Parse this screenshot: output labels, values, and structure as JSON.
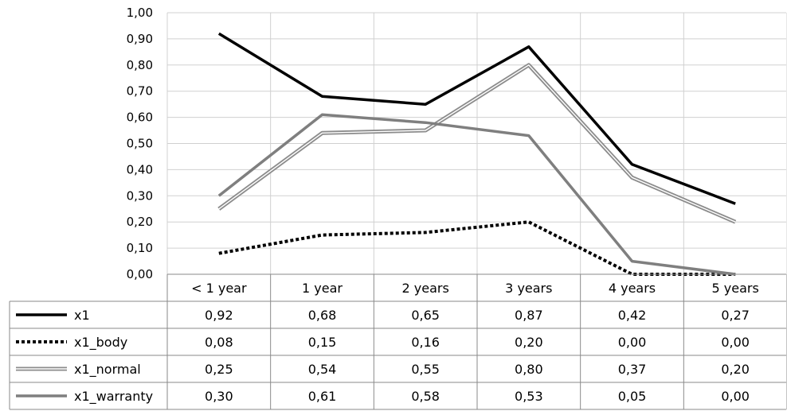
{
  "chart_data": {
    "type": "line",
    "title": "",
    "xlabel": "",
    "ylabel": "",
    "categories": [
      "< 1 year",
      "1 year",
      "2 years",
      "3 years",
      "4 years",
      "5 years"
    ],
    "ylim": [
      0,
      1
    ],
    "y_ticks": [
      "0,00",
      "0,10",
      "0,20",
      "0,30",
      "0,40",
      "0,50",
      "0,60",
      "0,70",
      "0,80",
      "0,90",
      "1,00"
    ],
    "grid": true,
    "legend": "data-table-below",
    "series": [
      {
        "name": "x1",
        "style": "solid-black",
        "color": "#000000",
        "values": [
          0.92,
          0.68,
          0.65,
          0.87,
          0.42,
          0.27
        ],
        "labels": [
          "0,92",
          "0,68",
          "0,65",
          "0,87",
          "0,42",
          "0,27"
        ]
      },
      {
        "name": "x1_body",
        "style": "dotted-black",
        "color": "#000000",
        "values": [
          0.08,
          0.15,
          0.16,
          0.2,
          0.0,
          0.0
        ],
        "labels": [
          "0,08",
          "0,15",
          "0,16",
          "0,20",
          "0,00",
          "0,00"
        ]
      },
      {
        "name": "x1_normal",
        "style": "double-gray",
        "color": "#8c8c8c",
        "values": [
          0.25,
          0.54,
          0.55,
          0.8,
          0.37,
          0.2
        ],
        "labels": [
          "0,25",
          "0,54",
          "0,55",
          "0,80",
          "0,37",
          "0,20"
        ]
      },
      {
        "name": "x1_warranty",
        "style": "solid-gray",
        "color": "#7f7f7f",
        "values": [
          0.3,
          0.61,
          0.58,
          0.53,
          0.05,
          0.0
        ],
        "labels": [
          "0,30",
          "0,61",
          "0,58",
          "0,53",
          "0,05",
          "0,00"
        ]
      }
    ]
  }
}
